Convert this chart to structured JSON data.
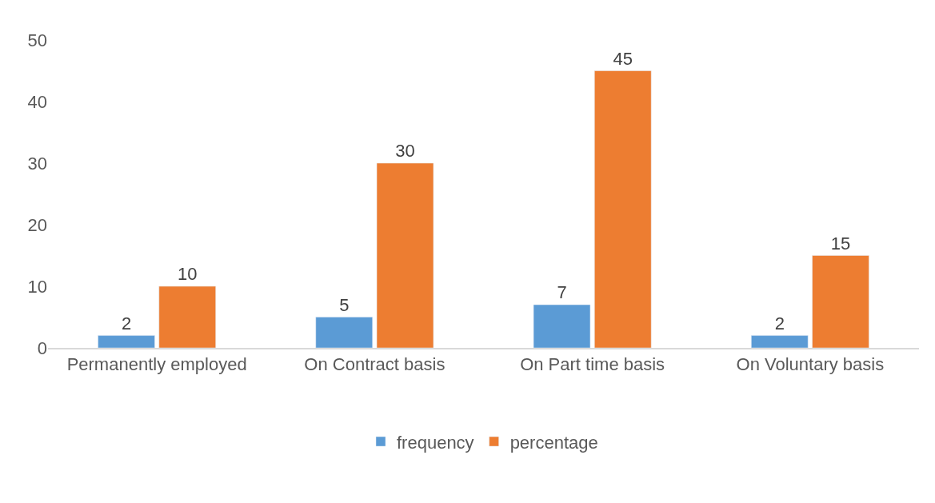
{
  "chart_data": {
    "type": "bar",
    "categories": [
      "Permanently employed",
      "On Contract basis",
      "On Part time basis",
      "On Voluntary basis"
    ],
    "series": [
      {
        "name": "frequency",
        "color": "#5b9bd5",
        "values": [
          2,
          5,
          7,
          2
        ]
      },
      {
        "name": "percentage",
        "color": "#ed7d31",
        "values": [
          10,
          30,
          45,
          15
        ]
      }
    ],
    "ylim": [
      0,
      50
    ],
    "yticks": [
      0,
      10,
      20,
      30,
      40,
      50
    ],
    "grid": false,
    "legend": "bottom",
    "data_labels": true
  }
}
